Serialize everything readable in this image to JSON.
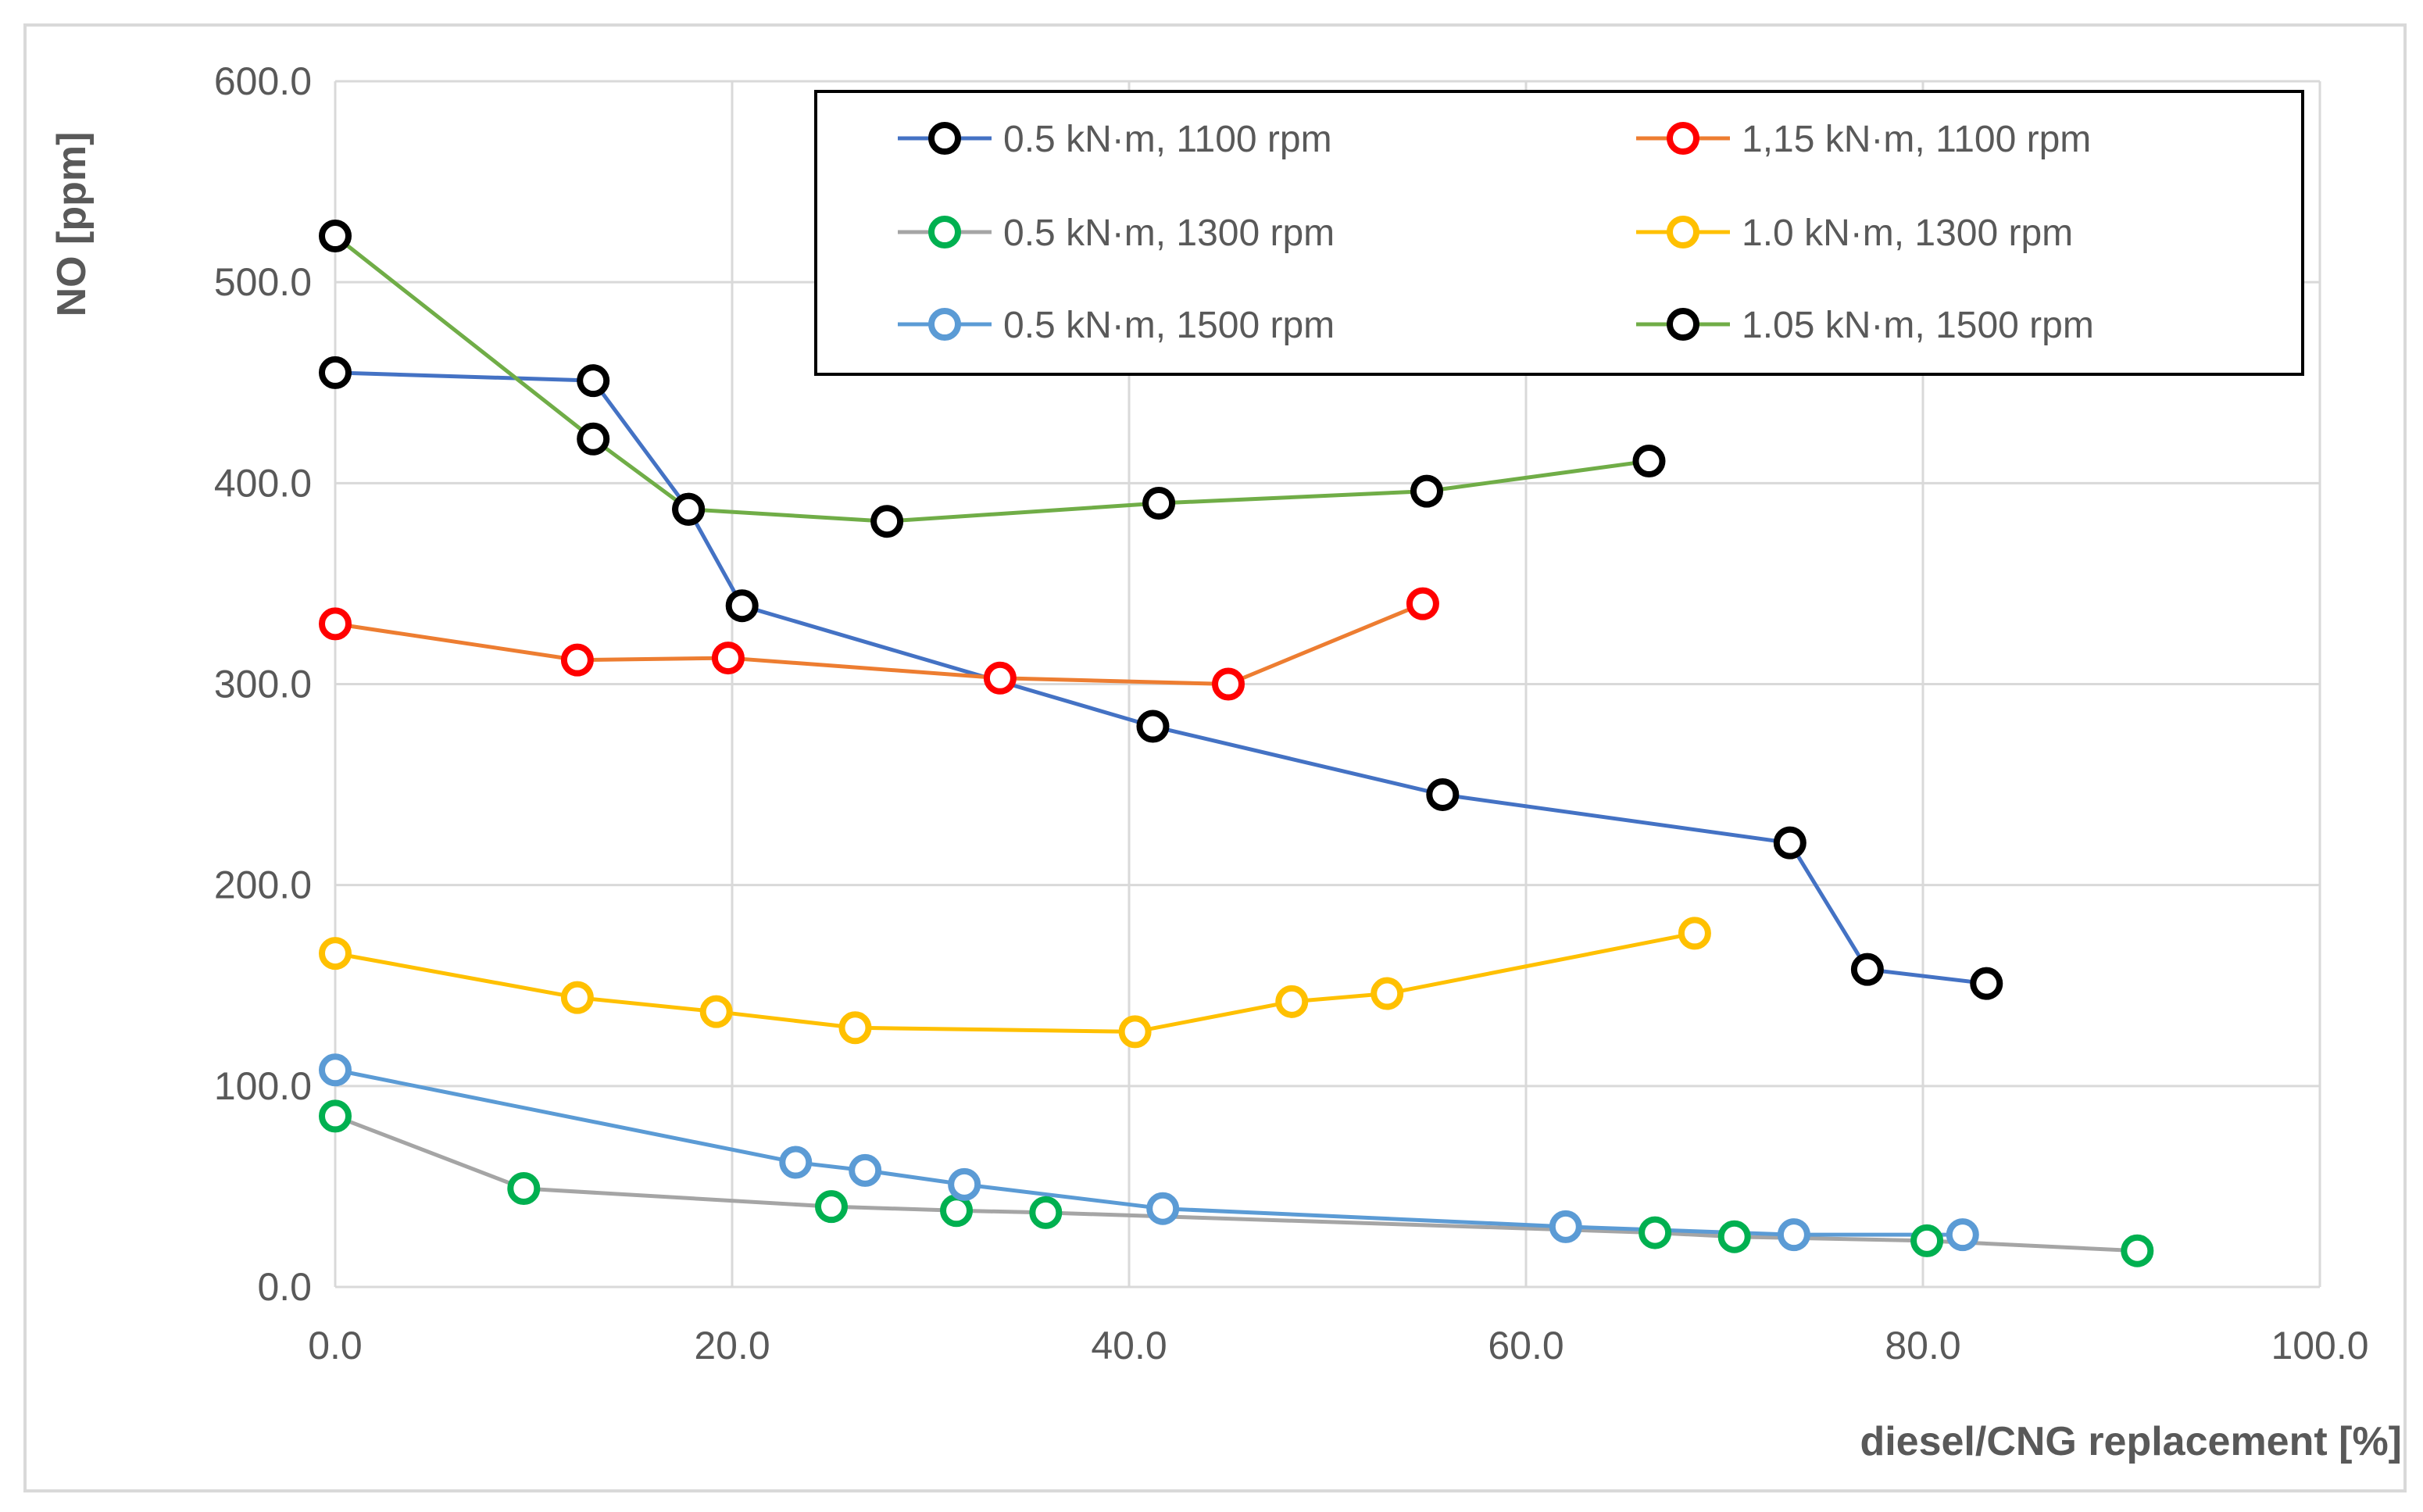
{
  "chart_data": {
    "type": "scatter",
    "title": "",
    "xlabel": "diesel/CNG replacement [%]",
    "ylabel": "NO [ppm]",
    "xlim": [
      0,
      100
    ],
    "ylim": [
      0,
      600
    ],
    "xticks": [
      "0.0",
      "20.0",
      "40.0",
      "60.0",
      "80.0",
      "100.0"
    ],
    "yticks": [
      "0.0",
      "100.0",
      "200.0",
      "300.0",
      "400.0",
      "500.0",
      "600.0"
    ],
    "grid": true,
    "legend_position": "top-right",
    "series": [
      {
        "name": "0.5 kN·m, 1100 rpm",
        "line_color": "#4472c4",
        "marker_color": "#000000",
        "x": [
          0,
          13,
          17.8,
          20.5,
          41.2,
          55.8,
          73.3,
          77.2,
          83.2
        ],
        "y": [
          455,
          451,
          387,
          339,
          279,
          245,
          221,
          158,
          151
        ]
      },
      {
        "name": "1,15 kN·m, 1100 rpm",
        "line_color": "#ed7d31",
        "marker_color": "#ff0000",
        "x": [
          0,
          12.2,
          19.8,
          33.5,
          45.0,
          54.8
        ],
        "y": [
          330,
          312,
          313,
          303,
          300,
          340
        ]
      },
      {
        "name": "0.5 kN·m, 1300 rpm",
        "line_color": "#a5a5a5",
        "marker_color": "#00b050",
        "x": [
          0,
          9.5,
          25.0,
          31.3,
          35.8,
          66.5,
          70.5,
          80.2,
          90.8
        ],
        "y": [
          85,
          49,
          40,
          38,
          37,
          27,
          25,
          23,
          18
        ]
      },
      {
        "name": "1.0 kN·m, 1300 rpm",
        "line_color": "#ffc000",
        "marker_color": "#ffc000",
        "x": [
          0,
          12.2,
          19.2,
          26.2,
          40.3,
          48.2,
          53.0,
          68.5
        ],
        "y": [
          166,
          144,
          137,
          129,
          127,
          142,
          146,
          176
        ]
      },
      {
        "name": "0.5 kN·m, 1500 rpm",
        "line_color": "#5b9bd5",
        "marker_color": "#5b9bd5",
        "x": [
          0,
          23.2,
          26.7,
          31.7,
          41.7,
          62.0,
          73.5,
          82.0
        ],
        "y": [
          108,
          62,
          58,
          51,
          39,
          30,
          26,
          26
        ]
      },
      {
        "name": "1.05 kN·m, 1500 rpm",
        "line_color": "#70ad47",
        "marker_color": "#000000",
        "x": [
          0,
          13.0,
          17.8,
          27.8,
          41.5,
          55.0,
          66.2
        ],
        "y": [
          523,
          422,
          387,
          381,
          390,
          396,
          411
        ]
      }
    ]
  }
}
